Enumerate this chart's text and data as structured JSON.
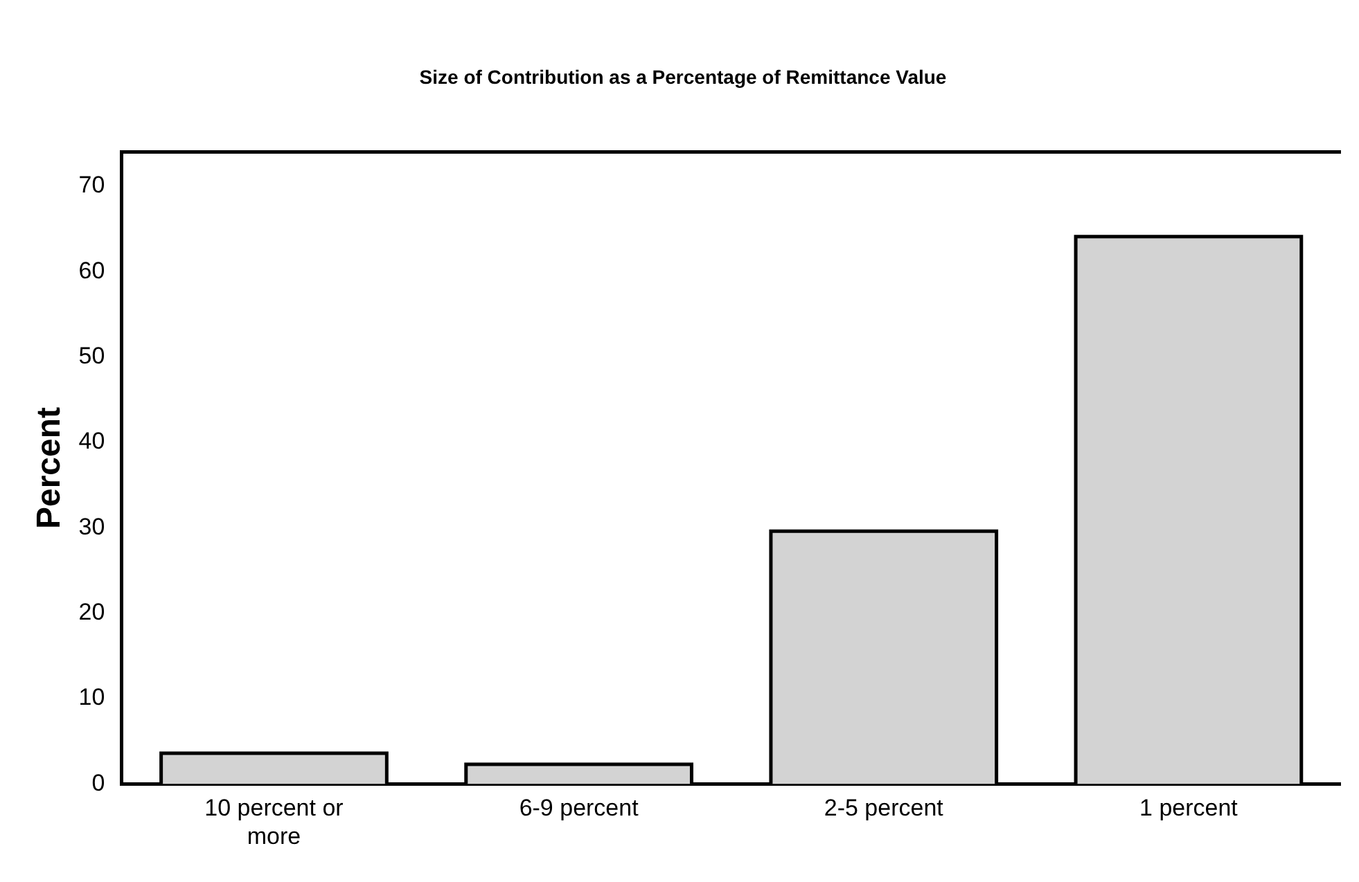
{
  "chart_data": {
    "type": "bar",
    "title": "Size of Contribution as a Percentage of Remittance Value",
    "ylabel": "Percent",
    "categories": [
      "10 percent or more",
      "6-9 percent",
      "2-5 percent",
      "1 percent"
    ],
    "values": [
      3.6,
      2.3,
      29.6,
      64.1
    ],
    "color": "#d3d3d3",
    "ylim": [
      0,
      74
    ],
    "yticks": [
      0,
      10,
      20,
      30,
      40,
      50,
      60,
      70
    ],
    "grid": false,
    "legend": false
  }
}
